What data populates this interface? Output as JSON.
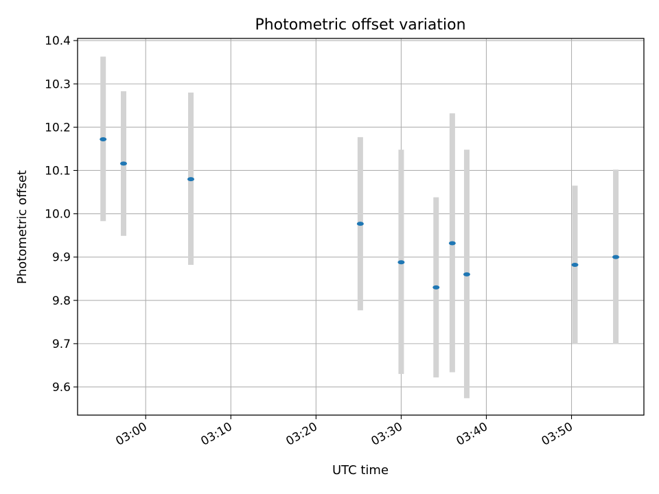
{
  "chart_data": {
    "type": "scatter",
    "title": "Photometric offset variation",
    "xlabel": "UTC time",
    "ylabel": "Photometric offset",
    "x_ticks": [
      "03:00",
      "03:10",
      "03:20",
      "03:30",
      "03:40",
      "03:50"
    ],
    "y_ticks": [
      "9.6",
      "9.7",
      "9.8",
      "9.9",
      "10.0",
      "10.1",
      "10.2",
      "10.3",
      "10.4"
    ],
    "xlim": [
      "02:52",
      "03:58.5"
    ],
    "ylim": [
      9.535,
      10.405
    ],
    "grid": true,
    "colors": {
      "point": "#1f77b4",
      "errorbar": "#d3d3d3",
      "grid": "#b0b0b0"
    },
    "points": [
      {
        "x": "02:55",
        "y": 10.172,
        "ylow": 9.983,
        "yhigh": 10.363
      },
      {
        "x": "02:57.4",
        "y": 10.116,
        "ylow": 9.949,
        "yhigh": 10.283
      },
      {
        "x": "03:05.3",
        "y": 10.08,
        "ylow": 9.882,
        "yhigh": 10.28
      },
      {
        "x": "03:25.2",
        "y": 9.977,
        "ylow": 9.777,
        "yhigh": 10.177
      },
      {
        "x": "03:30",
        "y": 9.888,
        "ylow": 9.63,
        "yhigh": 10.148
      },
      {
        "x": "03:34.1",
        "y": 9.83,
        "ylow": 9.622,
        "yhigh": 10.038
      },
      {
        "x": "03:36",
        "y": 9.932,
        "ylow": 9.634,
        "yhigh": 10.232
      },
      {
        "x": "03:37.7",
        "y": 9.86,
        "ylow": 9.574,
        "yhigh": 10.148
      },
      {
        "x": "03:50.4",
        "y": 9.882,
        "ylow": 9.699,
        "yhigh": 10.065
      },
      {
        "x": "03:55.2",
        "y": 9.9,
        "ylow": 9.699,
        "yhigh": 10.102
      }
    ]
  }
}
